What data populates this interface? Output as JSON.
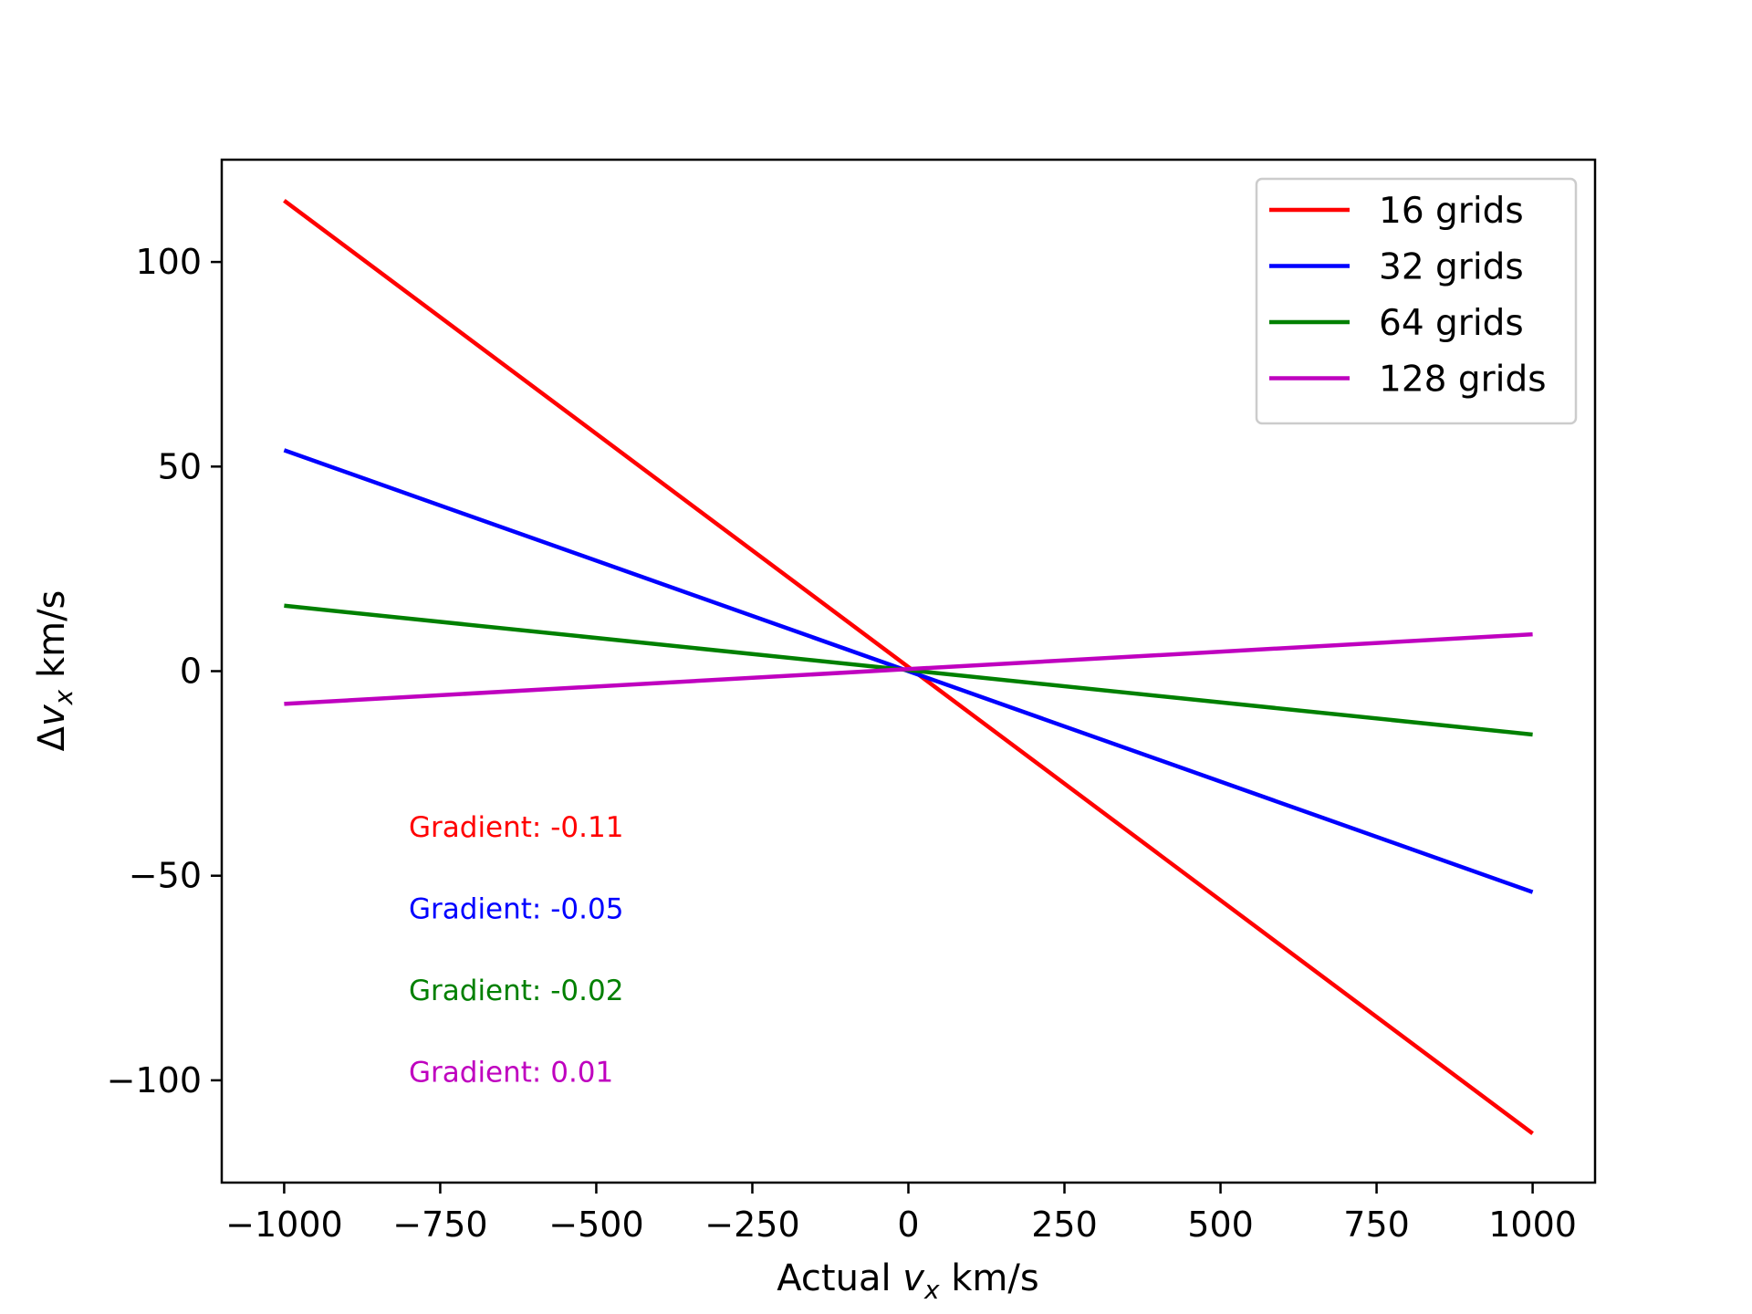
{
  "chart_data": {
    "type": "line",
    "xlabel": "Actual v_x km/s",
    "xlabel_parts": {
      "prefix": "Actual ",
      "var": "v",
      "sub": "x",
      "suffix": " km/s"
    },
    "ylabel": "Δv_x km/s",
    "ylabel_parts": {
      "prefix": "Δ",
      "var": "v",
      "sub": "x",
      "suffix": " km/s"
    },
    "xlim": [
      -1100,
      1100
    ],
    "ylim": [
      -125,
      125
    ],
    "xticks": [
      -1000,
      -750,
      -500,
      -250,
      0,
      250,
      500,
      750,
      1000
    ],
    "yticks": [
      -100,
      -50,
      0,
      50,
      100
    ],
    "xtick_labels": [
      "−1000",
      "−750",
      "−500",
      "−250",
      "0",
      "250",
      "500",
      "750",
      "1000"
    ],
    "ytick_labels": [
      "−100",
      "−50",
      "0",
      "50",
      "100"
    ],
    "grid": false,
    "legend_position": "top-right",
    "series": [
      {
        "name": "16 grids",
        "color": "#ff0000",
        "x": [
          -1000,
          1000
        ],
        "y": [
          115,
          -113
        ]
      },
      {
        "name": "32 grids",
        "color": "#0000ff",
        "x": [
          -1000,
          1000
        ],
        "y": [
          54,
          -54
        ]
      },
      {
        "name": "64 grids",
        "color": "#008000",
        "x": [
          -1000,
          1000
        ],
        "y": [
          16,
          -15.5
        ]
      },
      {
        "name": "128 grids",
        "color": "#bf00bf",
        "x": [
          -1000,
          1000
        ],
        "y": [
          -8,
          9
        ]
      }
    ],
    "annotations": [
      {
        "text": "Gradient: -0.11",
        "color": "#ff0000"
      },
      {
        "text": "Gradient: -0.05",
        "color": "#0000ff"
      },
      {
        "text": "Gradient: -0.02",
        "color": "#008000"
      },
      {
        "text": "Gradient: 0.01",
        "color": "#bf00bf"
      }
    ]
  }
}
